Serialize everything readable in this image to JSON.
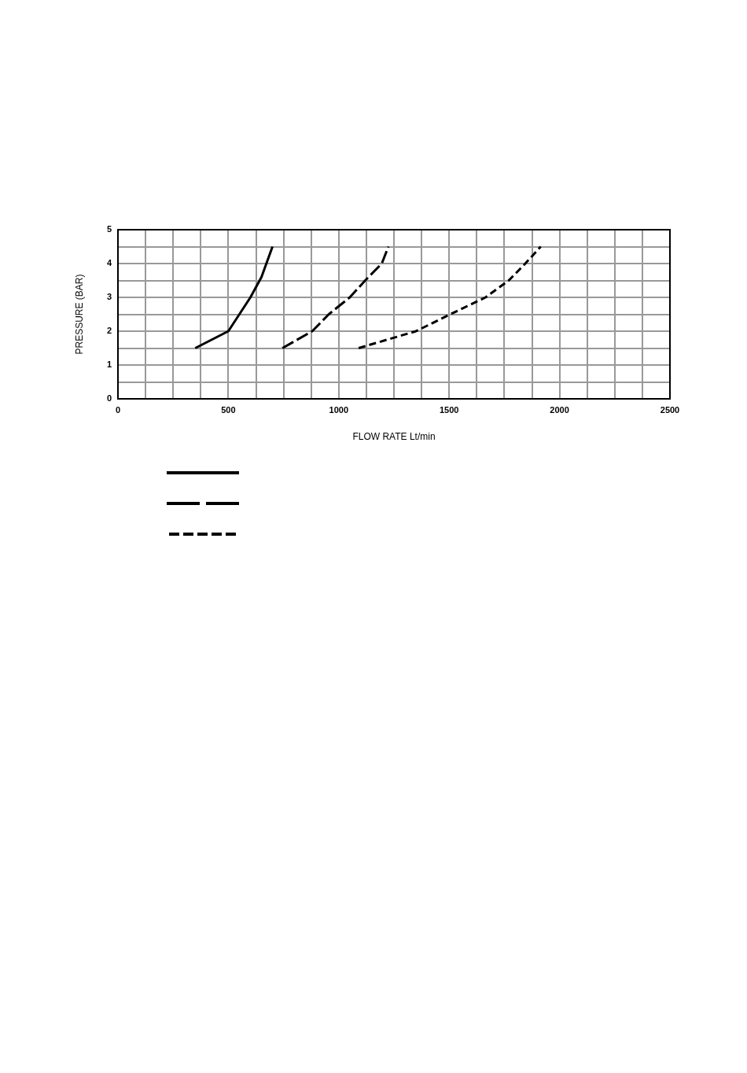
{
  "chart_data": {
    "type": "line",
    "xlabel": "FLOW RATE Lt/min",
    "ylabel": "PRESSURE (BAR)",
    "xlim": [
      0,
      2500
    ],
    "ylim": [
      0,
      5
    ],
    "xticks": [
      0,
      {
        "value": 125,
        "label": null
      },
      {
        "value": 250,
        "label": null
      },
      {
        "value": 375,
        "label": null
      },
      500,
      {
        "value": 625,
        "label": null
      },
      {
        "value": 750,
        "label": null
      },
      {
        "value": 875,
        "label": null
      },
      1000,
      {
        "value": 1125,
        "label": null
      },
      {
        "value": 1250,
        "label": null
      },
      {
        "value": 1375,
        "label": null
      },
      1500,
      {
        "value": 1625,
        "label": null
      },
      {
        "value": 1750,
        "label": null
      },
      {
        "value": 1875,
        "label": null
      },
      2000,
      {
        "value": 2125,
        "label": null
      },
      {
        "value": 2250,
        "label": null
      },
      {
        "value": 2375,
        "label": null
      },
      2500
    ],
    "yticks": [
      0,
      {
        "value": 0.5,
        "label": null
      },
      1,
      {
        "value": 1.5,
        "label": null
      },
      2,
      {
        "value": 2.5,
        "label": null
      },
      3,
      {
        "value": 3.5,
        "label": null
      },
      4,
      {
        "value": 4.5,
        "label": null
      },
      5
    ],
    "grid": true,
    "marker": "none",
    "series": [
      {
        "color": "#000000",
        "line_style": "solid",
        "x": [
          350,
          500,
          600,
          650,
          700
        ],
        "values": [
          1.5,
          2,
          3,
          3.6,
          4.5
        ]
      },
      {
        "color": "#000000",
        "line_style": "dashed",
        "x": [
          745,
          880,
          955,
          1050,
          1120,
          1195,
          1225
        ],
        "values": [
          1.5,
          2,
          2.5,
          3,
          3.5,
          4,
          4.5
        ]
      },
      {
        "color": "#000000",
        "line_style": "dotted",
        "x": [
          1090,
          1350,
          1505,
          1665,
          1770,
          1845,
          1915
        ],
        "values": [
          1.5,
          2,
          2.5,
          3,
          3.5,
          4,
          4.5
        ]
      }
    ]
  }
}
